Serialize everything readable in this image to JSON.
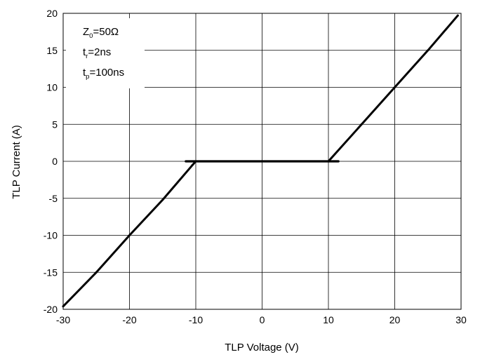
{
  "chart_data": {
    "type": "line",
    "xlabel": "TLP Voltage (V)",
    "ylabel": "TLP Current (A)",
    "xlim": [
      -30,
      30
    ],
    "ylim": [
      -20,
      20
    ],
    "xticks": [
      -30,
      -20,
      -10,
      0,
      10,
      20,
      30
    ],
    "yticks": [
      -20,
      -15,
      -10,
      -5,
      0,
      5,
      10,
      15,
      20
    ],
    "xtick_labels": [
      "-30",
      "-20",
      "-10",
      "0",
      "10",
      "20",
      "30"
    ],
    "ytick_labels": [
      "-20",
      "-15",
      "-10",
      "-5",
      "0",
      "5",
      "10",
      "15",
      "20"
    ],
    "grid": true,
    "annotation": {
      "z0": {
        "main": "Z",
        "sub": "0",
        "rest": "=50Ω"
      },
      "tr": {
        "main": "t",
        "sub": "r",
        "rest": "=2ns"
      },
      "tp": {
        "main": "t",
        "sub": "p",
        "rest": "=100ns"
      }
    },
    "series": [
      {
        "color": "#000000",
        "x": [
          -30,
          -25,
          -20,
          -15,
          -10.5,
          -10,
          -5,
          0,
          5,
          10,
          10.5,
          15,
          20,
          25,
          29.5
        ],
        "y": [
          -19.6,
          -15,
          -10,
          -5.2,
          -0.5,
          0,
          0,
          0,
          0,
          0,
          0.5,
          5,
          10,
          15,
          19.7
        ]
      }
    ],
    "flat_segment": {
      "x": [
        -11.5,
        11.5
      ],
      "y": 0
    }
  }
}
